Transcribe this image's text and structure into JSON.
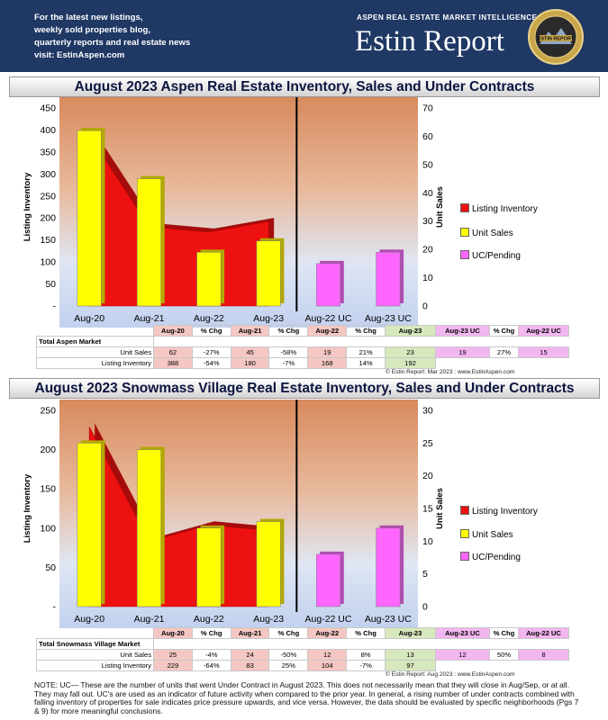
{
  "header": {
    "promo_lines": [
      "For the latest new listings,",
      "weekly sold properties blog,",
      "quarterly reports and real estate news",
      "visit: EstinAspen.com"
    ],
    "tagline": "ASPEN REAL ESTATE MARKET INTELLIGENCE",
    "brand": "Estin Report",
    "seal_text": "ESTIN REPORT"
  },
  "legend": [
    "Listing Inventory",
    "Unit Sales",
    "UC/Pending"
  ],
  "colors": {
    "inventory": "#ee1111",
    "sales": "#ffff00",
    "pending": "#ff66ff",
    "header_bg": "#1f3864"
  },
  "chart_data": [
    {
      "type": "bar",
      "title": "August 2023 Aspen Real Estate Inventory, Sales and Under Contracts",
      "ylabel": "Listing Inventory",
      "y2label": "Unit Sales",
      "ylim": [
        0,
        450
      ],
      "y2lim": [
        0,
        70
      ],
      "yticks": [
        "-",
        "50",
        "100",
        "150",
        "200",
        "250",
        "300",
        "350",
        "400",
        "450"
      ],
      "y2ticks": [
        "0",
        "10",
        "20",
        "30",
        "40",
        "50",
        "60",
        "70"
      ],
      "categories": [
        "Aug-20",
        "Aug-21",
        "Aug-22",
        "Aug-23",
        "Aug-22 UC",
        "Aug-23 UC"
      ],
      "series": [
        {
          "name": "Listing Inventory",
          "type": "area",
          "values": [
            388,
            180,
            168,
            192,
            null,
            null
          ]
        },
        {
          "name": "Unit Sales",
          "type": "bar",
          "values": [
            62,
            45,
            19,
            23,
            null,
            null
          ]
        },
        {
          "name": "UC/Pending",
          "type": "bar",
          "values": [
            null,
            null,
            null,
            null,
            15,
            19
          ]
        }
      ],
      "table": {
        "title": "Total Aspen Market",
        "header": [
          "Aug-20",
          "% Chg",
          "Aug-21",
          "% Chg",
          "Aug-22",
          "% Chg",
          "Aug-23",
          "Aug-23 UC",
          "% Chg",
          "Aug-22 UC"
        ],
        "rows": [
          {
            "label": "Unit Sales",
            "cells": [
              "62",
              "-27%",
              "45",
              "-58%",
              "19",
              "21%",
              "23",
              "19",
              "27%",
              "15"
            ]
          },
          {
            "label": "Listing Inventory",
            "cells": [
              "388",
              "-54%",
              "180",
              "-7%",
              "168",
              "14%",
              "192",
              "",
              "",
              ""
            ]
          }
        ]
      },
      "source": "© Estin Report: Mar 2023 : www.EstinAspen.com"
    },
    {
      "type": "bar",
      "title": "August 2023 Snowmass Village Real Estate Inventory, Sales and Under Contracts",
      "ylabel": "Listing Inventory",
      "y2label": "Unit Sales",
      "ylim": [
        0,
        250
      ],
      "y2lim": [
        0,
        30
      ],
      "yticks": [
        "-",
        "50",
        "100",
        "150",
        "200",
        "250"
      ],
      "y2ticks": [
        "0",
        "5",
        "10",
        "15",
        "20",
        "25",
        "30"
      ],
      "categories": [
        "Aug-20",
        "Aug-21",
        "Aug-22",
        "Aug-23",
        "Aug-22 UC",
        "Aug-23 UC"
      ],
      "series": [
        {
          "name": "Listing Inventory",
          "type": "area",
          "values": [
            229,
            83,
            104,
            97,
            null,
            null
          ]
        },
        {
          "name": "Unit Sales",
          "type": "bar",
          "values": [
            25,
            24,
            12,
            13,
            null,
            null
          ]
        },
        {
          "name": "UC/Pending",
          "type": "bar",
          "values": [
            null,
            null,
            null,
            null,
            8,
            12
          ]
        }
      ],
      "table": {
        "title": "Total Snowmass Village Market",
        "header": [
          "Aug-20",
          "% Chg",
          "Aug-21",
          "% Chg",
          "Aug-22",
          "% Chg",
          "Aug-23",
          "Aug-23 UC",
          "% Chg",
          "Aug-22 UC"
        ],
        "rows": [
          {
            "label": "Unit Sales",
            "cells": [
              "25",
              "-4%",
              "24",
              "-50%",
              "12",
              "8%",
              "13",
              "12",
              "50%",
              "8"
            ]
          },
          {
            "label": "Listing Inventory",
            "cells": [
              "229",
              "-64%",
              "83",
              "25%",
              "104",
              "-7%",
              "97",
              "",
              "",
              ""
            ]
          }
        ]
      },
      "source": "© Estin Report: Aug 2023 : www.EstinAspen.com"
    }
  ],
  "note": "NOTE: UC— These are the number of units that went Under Contract in August 2023. This does not necessarily mean that they will close in Aug/Sep, or at all. They may fall out. UC's are used as an indicator of future activity when compared to the prior year. In general, a rising number of under contracts combined with falling inventory of properties for sale indicates price pressure upwards, and vice versa. However, the data should be evaluated by specific neighborhoods (Pgs 7 & 9) for more meaningful conclusions."
}
